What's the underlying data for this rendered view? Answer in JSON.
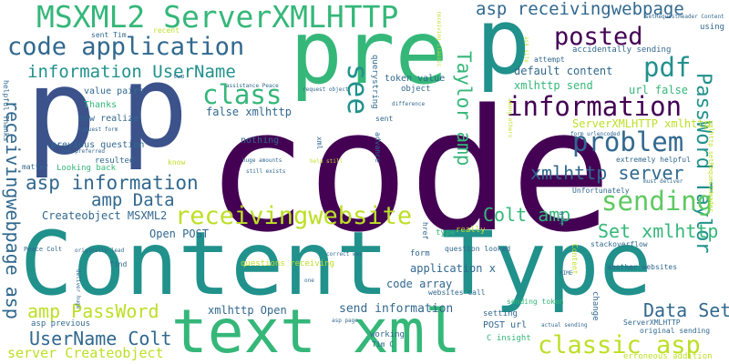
{
  "palette": {
    "deep_purple": "#440154",
    "indigo": "#3b528b",
    "slate_blue": "#31688e",
    "teal": "#21918c",
    "green": "#35b779",
    "lime": "#5ec962",
    "yellow_green": "#bddf26",
    "yellow": "#fde725"
  },
  "words": [
    {
      "text": "code",
      "color": "#440154"
    },
    {
      "text": "Content Type",
      "color": "#21918c"
    },
    {
      "text": "text xml",
      "color": "#35b779"
    },
    {
      "text": "pre",
      "color": "#35b779"
    },
    {
      "text": "p",
      "color": "#3b528b"
    },
    {
      "text": "p",
      "color": "#3b528b"
    },
    {
      "text": "p",
      "color": "#21918c"
    },
    {
      "text": "MSXML2 ServerXMLHTTP",
      "color": "#35b779"
    },
    {
      "text": "code application",
      "color": "#31688e"
    },
    {
      "text": "asp receivingwebpage",
      "color": "#31688e"
    },
    {
      "text": "posted",
      "color": "#440154"
    },
    {
      "text": "pdf",
      "color": "#21918c"
    },
    {
      "text": "information UserName",
      "color": "#21918c"
    },
    {
      "text": "class",
      "color": "#35b779"
    },
    {
      "text": "information",
      "color": "#440154"
    },
    {
      "text": "see",
      "color": "#21918c"
    },
    {
      "text": "Taylor amp",
      "color": "#35b779"
    },
    {
      "text": "PassWord Taylor",
      "color": "#21918c"
    },
    {
      "text": "problem",
      "color": "#31688e"
    },
    {
      "text": "xmlhttp server",
      "color": "#31688e"
    },
    {
      "text": "sending",
      "color": "#5ec962"
    },
    {
      "text": "receivingwebsite",
      "color": "#bddf26"
    },
    {
      "text": "asp information",
      "color": "#31688e"
    },
    {
      "text": "amp Data",
      "color": "#31688e"
    },
    {
      "text": "Colt amp",
      "color": "#35b779"
    },
    {
      "text": "Set xmlhttp",
      "color": "#35b779"
    },
    {
      "text": "receivingwebpage asp",
      "color": "#31688e"
    },
    {
      "text": "amp PassWord",
      "color": "#bddf26"
    },
    {
      "text": "UserName Colt",
      "color": "#31688e"
    },
    {
      "text": "classic asp",
      "color": "#bddf26"
    },
    {
      "text": "Data Set",
      "color": "#31688e"
    },
    {
      "text": "server Createobject",
      "color": "#bddf26"
    },
    {
      "text": "default content",
      "color": "#31688e"
    },
    {
      "text": "xmlhttp send",
      "color": "#35b779"
    },
    {
      "text": "url false",
      "color": "#35b779"
    },
    {
      "text": "ServerXMLHTTP xmlhttp",
      "color": "#bddf26"
    },
    {
      "text": "false xmlhttp",
      "color": "#31688e"
    },
    {
      "text": "Createobject MSXML2",
      "color": "#31688e"
    },
    {
      "text": "Open POST",
      "color": "#31688e"
    },
    {
      "text": "xmlhttp Open",
      "color": "#31688e"
    },
    {
      "text": "send information",
      "color": "#31688e"
    },
    {
      "text": "application x",
      "color": "#31688e"
    },
    {
      "text": "code array",
      "color": "#31688e"
    },
    {
      "text": "previous question",
      "color": "#31688e"
    },
    {
      "text": "asp previous",
      "color": "#31688e"
    },
    {
      "text": "token value",
      "color": "#31688e"
    },
    {
      "text": "value pairs",
      "color": "#31688e"
    },
    {
      "text": "now realize",
      "color": "#31688e"
    },
    {
      "text": "accidentally sending",
      "color": "#31688e"
    },
    {
      "text": "extremely helpful",
      "color": "#31688e"
    },
    {
      "text": "Unfortunately",
      "color": "#31688e"
    },
    {
      "text": "stackoverflow",
      "color": "#31688e"
    },
    {
      "text": "another websites",
      "color": "#31688e"
    },
    {
      "text": "question looked",
      "color": "#31688e"
    },
    {
      "text": "websites call",
      "color": "#31688e"
    },
    {
      "text": "POST url",
      "color": "#31688e"
    },
    {
      "text": "sending token",
      "color": "#35b779"
    },
    {
      "text": "ServerXMLHTTP",
      "color": "#31688e"
    },
    {
      "text": "original sending",
      "color": "#31688e"
    },
    {
      "text": "erroneous addition",
      "color": "#bddf26"
    },
    {
      "text": "C insight",
      "color": "#35b779"
    },
    {
      "text": "Tim C",
      "color": "#31688e"
    },
    {
      "text": "working",
      "color": "#31688e"
    },
    {
      "text": "setting",
      "color": "#31688e"
    },
    {
      "text": "nothing",
      "color": "#31688e"
    },
    {
      "text": "Thanks",
      "color": "#35b779"
    },
    {
      "text": "resulted",
      "color": "#31688e"
    },
    {
      "text": "Looking back",
      "color": "#35b779"
    },
    {
      "text": "matter",
      "color": "#31688e"
    },
    {
      "text": "know",
      "color": "#bddf26"
    },
    {
      "text": "attempt",
      "color": "#31688e"
    },
    {
      "text": "using",
      "color": "#31688e"
    },
    {
      "text": "querystring",
      "color": "#31688e"
    },
    {
      "text": "advance",
      "color": "#31688e"
    },
    {
      "text": "sent",
      "color": "#31688e"
    },
    {
      "text": "object",
      "color": "#31688e"
    },
    {
      "text": "find",
      "color": "#31688e"
    },
    {
      "text": "really",
      "color": "#bddf26"
    },
    {
      "text": "type",
      "color": "#35b779"
    },
    {
      "text": "form",
      "color": "#31688e"
    },
    {
      "text": "href",
      "color": "#31688e"
    },
    {
      "text": "change",
      "color": "#31688e"
    },
    {
      "text": "questions receiving",
      "color": "#bddf26"
    },
    {
      "text": "sent Tim",
      "color": "#31688e"
    },
    {
      "text": "recent",
      "color": "#bddf26"
    },
    {
      "text": "two",
      "color": "#31688e"
    },
    {
      "text": "Peace Colt",
      "color": "#31688e"
    },
    {
      "text": "xml",
      "color": "#31688e"
    },
    {
      "text": "ask",
      "color": "#31688e"
    },
    {
      "text": "Content",
      "color": "#bddf26"
    },
    {
      "text": "helpful Thanks",
      "color": "#31688e"
    },
    {
      "text": "setRequestHeader Content",
      "color": "#31688e"
    },
    {
      "text": "xmlhttp setRequestHeader",
      "color": "#bddf26"
    },
    {
      "text": "assistance Peace",
      "color": "#31688e"
    },
    {
      "text": "request object",
      "color": "#31688e"
    },
    {
      "text": "request form",
      "color": "#31688e"
    },
    {
      "text": "one preferred",
      "color": "#31688e"
    },
    {
      "text": "huge amounts",
      "color": "#31688e"
    },
    {
      "text": "still exists",
      "color": "#31688e"
    },
    {
      "text": "help still",
      "color": "#bddf26"
    },
    {
      "text": "difference",
      "color": "#31688e"
    },
    {
      "text": "form urlencoded",
      "color": "#31688e"
    },
    {
      "text": "must deliver",
      "color": "#31688e"
    },
    {
      "text": "originally lead",
      "color": "#31688e"
    },
    {
      "text": "deliver huge",
      "color": "#31688e"
    },
    {
      "text": "asp page",
      "color": "#31688e"
    },
    {
      "text": "correct way",
      "color": "#31688e"
    },
    {
      "text": "actual sending",
      "color": "#31688e"
    },
    {
      "text": "MIME",
      "color": "#31688e"
    },
    {
      "text": "receiving classic",
      "color": "#bddf26"
    },
    {
      "text": "among others",
      "color": "#bddf26"
    },
    {
      "text": "ask site",
      "color": "#bddf26"
    },
    {
      "text": "one",
      "color": "#31688e"
    }
  ]
}
